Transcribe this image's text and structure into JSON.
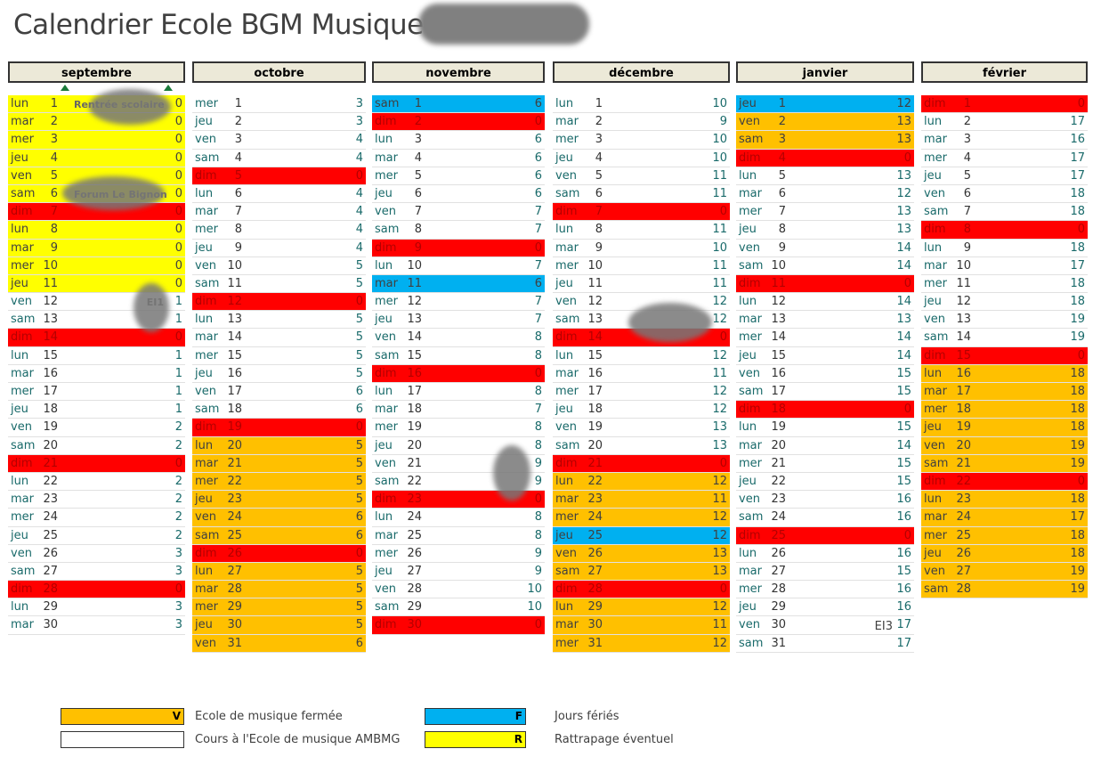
{
  "title": "Calendrier Ecole BGM Musique",
  "colors": {
    "vacances": "#ffc000",
    "ferie": "#00b0f0",
    "rattrapage": "#ffff00",
    "dimanche": "#ff0000",
    "cours": "#ffffff"
  },
  "months": [
    {
      "name": "septembre",
      "days": [
        [
          "lun",
          "1",
          "0",
          "r",
          "Rentrée scolaire"
        ],
        [
          "mar",
          "2",
          "0",
          "r"
        ],
        [
          "mer",
          "3",
          "0",
          "r"
        ],
        [
          "jeu",
          "4",
          "0",
          "r"
        ],
        [
          "ven",
          "5",
          "0",
          "r"
        ],
        [
          "sam",
          "6",
          "0",
          "r",
          "Forum Le Bignon"
        ],
        [
          "dim",
          "7",
          "0",
          "d"
        ],
        [
          "lun",
          "8",
          "0",
          "r"
        ],
        [
          "mar",
          "9",
          "0",
          "r"
        ],
        [
          "mer",
          "10",
          "0",
          "r"
        ],
        [
          "jeu",
          "11",
          "0",
          "r"
        ],
        [
          "ven",
          "12",
          "1",
          "c",
          "EI1"
        ],
        [
          "sam",
          "13",
          "1",
          "c"
        ],
        [
          "dim",
          "14",
          "0",
          "d"
        ],
        [
          "lun",
          "15",
          "1",
          "c"
        ],
        [
          "mar",
          "16",
          "1",
          "c"
        ],
        [
          "mer",
          "17",
          "1",
          "c"
        ],
        [
          "jeu",
          "18",
          "1",
          "c"
        ],
        [
          "ven",
          "19",
          "2",
          "c"
        ],
        [
          "sam",
          "20",
          "2",
          "c"
        ],
        [
          "dim",
          "21",
          "0",
          "d"
        ],
        [
          "lun",
          "22",
          "2",
          "c"
        ],
        [
          "mar",
          "23",
          "2",
          "c"
        ],
        [
          "mer",
          "24",
          "2",
          "c"
        ],
        [
          "jeu",
          "25",
          "2",
          "c"
        ],
        [
          "ven",
          "26",
          "3",
          "c"
        ],
        [
          "sam",
          "27",
          "3",
          "c"
        ],
        [
          "dim",
          "28",
          "0",
          "d"
        ],
        [
          "lun",
          "29",
          "3",
          "c"
        ],
        [
          "mar",
          "30",
          "3",
          "c"
        ]
      ]
    },
    {
      "name": "octobre",
      "days": [
        [
          "mer",
          "1",
          "3",
          "c"
        ],
        [
          "jeu",
          "2",
          "3",
          "c"
        ],
        [
          "ven",
          "3",
          "4",
          "c"
        ],
        [
          "sam",
          "4",
          "4",
          "c"
        ],
        [
          "dim",
          "5",
          "0",
          "d"
        ],
        [
          "lun",
          "6",
          "4",
          "c"
        ],
        [
          "mar",
          "7",
          "4",
          "c"
        ],
        [
          "mer",
          "8",
          "4",
          "c"
        ],
        [
          "jeu",
          "9",
          "4",
          "c"
        ],
        [
          "ven",
          "10",
          "5",
          "c"
        ],
        [
          "sam",
          "11",
          "5",
          "c"
        ],
        [
          "dim",
          "12",
          "0",
          "d"
        ],
        [
          "lun",
          "13",
          "5",
          "c"
        ],
        [
          "mar",
          "14",
          "5",
          "c"
        ],
        [
          "mer",
          "15",
          "5",
          "c"
        ],
        [
          "jeu",
          "16",
          "5",
          "c"
        ],
        [
          "ven",
          "17",
          "6",
          "c"
        ],
        [
          "sam",
          "18",
          "6",
          "c"
        ],
        [
          "dim",
          "19",
          "0",
          "d"
        ],
        [
          "lun",
          "20",
          "5",
          "v"
        ],
        [
          "mar",
          "21",
          "5",
          "v"
        ],
        [
          "mer",
          "22",
          "5",
          "v"
        ],
        [
          "jeu",
          "23",
          "5",
          "v"
        ],
        [
          "ven",
          "24",
          "6",
          "v"
        ],
        [
          "sam",
          "25",
          "6",
          "v"
        ],
        [
          "dim",
          "26",
          "0",
          "d"
        ],
        [
          "lun",
          "27",
          "5",
          "v"
        ],
        [
          "mar",
          "28",
          "5",
          "v"
        ],
        [
          "mer",
          "29",
          "5",
          "v"
        ],
        [
          "jeu",
          "30",
          "5",
          "v"
        ],
        [
          "ven",
          "31",
          "6",
          "v"
        ]
      ]
    },
    {
      "name": "novembre",
      "days": [
        [
          "sam",
          "1",
          "6",
          "f"
        ],
        [
          "dim",
          "2",
          "0",
          "d"
        ],
        [
          "lun",
          "3",
          "6",
          "c"
        ],
        [
          "mar",
          "4",
          "6",
          "c"
        ],
        [
          "mer",
          "5",
          "6",
          "c"
        ],
        [
          "jeu",
          "6",
          "6",
          "c"
        ],
        [
          "ven",
          "7",
          "7",
          "c"
        ],
        [
          "sam",
          "8",
          "7",
          "c"
        ],
        [
          "dim",
          "9",
          "0",
          "d"
        ],
        [
          "lun",
          "10",
          "7",
          "c"
        ],
        [
          "mar",
          "11",
          "6",
          "f"
        ],
        [
          "mer",
          "12",
          "7",
          "c"
        ],
        [
          "jeu",
          "13",
          "7",
          "c"
        ],
        [
          "ven",
          "14",
          "8",
          "c"
        ],
        [
          "sam",
          "15",
          "8",
          "c"
        ],
        [
          "dim",
          "16",
          "0",
          "d"
        ],
        [
          "lun",
          "17",
          "8",
          "c"
        ],
        [
          "mar",
          "18",
          "7",
          "c"
        ],
        [
          "mer",
          "19",
          "8",
          "c"
        ],
        [
          "jeu",
          "20",
          "8",
          "c"
        ],
        [
          "ven",
          "21",
          "9",
          "c"
        ],
        [
          "sam",
          "22",
          "9",
          "c"
        ],
        [
          "dim",
          "23",
          "0",
          "d"
        ],
        [
          "lun",
          "24",
          "8",
          "c"
        ],
        [
          "mar",
          "25",
          "8",
          "c"
        ],
        [
          "mer",
          "26",
          "9",
          "c"
        ],
        [
          "jeu",
          "27",
          "9",
          "c"
        ],
        [
          "ven",
          "28",
          "10",
          "c"
        ],
        [
          "sam",
          "29",
          "10",
          "c"
        ],
        [
          "dim",
          "30",
          "0",
          "d"
        ]
      ]
    },
    {
      "name": "décembre",
      "days": [
        [
          "lun",
          "1",
          "10",
          "c"
        ],
        [
          "mar",
          "2",
          "9",
          "c"
        ],
        [
          "mer",
          "3",
          "10",
          "c"
        ],
        [
          "jeu",
          "4",
          "10",
          "c"
        ],
        [
          "ven",
          "5",
          "11",
          "c"
        ],
        [
          "sam",
          "6",
          "11",
          "c"
        ],
        [
          "dim",
          "7",
          "0",
          "d"
        ],
        [
          "lun",
          "8",
          "11",
          "c"
        ],
        [
          "mar",
          "9",
          "10",
          "c"
        ],
        [
          "mer",
          "10",
          "11",
          "c"
        ],
        [
          "jeu",
          "11",
          "11",
          "c"
        ],
        [
          "ven",
          "12",
          "12",
          "c"
        ],
        [
          "sam",
          "13",
          "12",
          "c"
        ],
        [
          "dim",
          "14",
          "0",
          "d"
        ],
        [
          "lun",
          "15",
          "12",
          "c"
        ],
        [
          "mar",
          "16",
          "11",
          "c"
        ],
        [
          "mer",
          "17",
          "12",
          "c"
        ],
        [
          "jeu",
          "18",
          "12",
          "c"
        ],
        [
          "ven",
          "19",
          "13",
          "c"
        ],
        [
          "sam",
          "20",
          "13",
          "c"
        ],
        [
          "dim",
          "21",
          "0",
          "d"
        ],
        [
          "lun",
          "22",
          "12",
          "v"
        ],
        [
          "mar",
          "23",
          "11",
          "v"
        ],
        [
          "mer",
          "24",
          "12",
          "v"
        ],
        [
          "jeu",
          "25",
          "12",
          "f"
        ],
        [
          "ven",
          "26",
          "13",
          "v"
        ],
        [
          "sam",
          "27",
          "13",
          "v"
        ],
        [
          "dim",
          "28",
          "0",
          "d"
        ],
        [
          "lun",
          "29",
          "12",
          "v"
        ],
        [
          "mar",
          "30",
          "11",
          "v"
        ],
        [
          "mer",
          "31",
          "12",
          "v"
        ]
      ]
    },
    {
      "name": "janvier",
      "days": [
        [
          "jeu",
          "1",
          "12",
          "f"
        ],
        [
          "ven",
          "2",
          "13",
          "v"
        ],
        [
          "sam",
          "3",
          "13",
          "v"
        ],
        [
          "dim",
          "4",
          "0",
          "d"
        ],
        [
          "lun",
          "5",
          "13",
          "c"
        ],
        [
          "mar",
          "6",
          "12",
          "c"
        ],
        [
          "mer",
          "7",
          "13",
          "c"
        ],
        [
          "jeu",
          "8",
          "13",
          "c"
        ],
        [
          "ven",
          "9",
          "14",
          "c"
        ],
        [
          "sam",
          "10",
          "14",
          "c"
        ],
        [
          "dim",
          "11",
          "0",
          "d"
        ],
        [
          "lun",
          "12",
          "14",
          "c"
        ],
        [
          "mar",
          "13",
          "13",
          "c"
        ],
        [
          "mer",
          "14",
          "14",
          "c"
        ],
        [
          "jeu",
          "15",
          "14",
          "c"
        ],
        [
          "ven",
          "16",
          "15",
          "c"
        ],
        [
          "sam",
          "17",
          "15",
          "c"
        ],
        [
          "dim",
          "18",
          "0",
          "d"
        ],
        [
          "lun",
          "19",
          "15",
          "c"
        ],
        [
          "mar",
          "20",
          "14",
          "c"
        ],
        [
          "mer",
          "21",
          "15",
          "c"
        ],
        [
          "jeu",
          "22",
          "15",
          "c"
        ],
        [
          "ven",
          "23",
          "16",
          "c"
        ],
        [
          "sam",
          "24",
          "16",
          "c"
        ],
        [
          "dim",
          "25",
          "0",
          "d"
        ],
        [
          "lun",
          "26",
          "16",
          "c"
        ],
        [
          "mar",
          "27",
          "15",
          "c"
        ],
        [
          "mer",
          "28",
          "16",
          "c"
        ],
        [
          "jeu",
          "29",
          "16",
          "c"
        ],
        [
          "ven",
          "30",
          "17",
          "c",
          "EI3"
        ],
        [
          "sam",
          "31",
          "17",
          "c"
        ]
      ]
    },
    {
      "name": "février",
      "days": [
        [
          "dim",
          "1",
          "0",
          "d"
        ],
        [
          "lun",
          "2",
          "17",
          "c"
        ],
        [
          "mar",
          "3",
          "16",
          "c"
        ],
        [
          "mer",
          "4",
          "17",
          "c"
        ],
        [
          "jeu",
          "5",
          "17",
          "c"
        ],
        [
          "ven",
          "6",
          "18",
          "c"
        ],
        [
          "sam",
          "7",
          "18",
          "c"
        ],
        [
          "dim",
          "8",
          "0",
          "d"
        ],
        [
          "lun",
          "9",
          "18",
          "c"
        ],
        [
          "mar",
          "10",
          "17",
          "c"
        ],
        [
          "mer",
          "11",
          "18",
          "c"
        ],
        [
          "jeu",
          "12",
          "18",
          "c"
        ],
        [
          "ven",
          "13",
          "19",
          "c"
        ],
        [
          "sam",
          "14",
          "19",
          "c"
        ],
        [
          "dim",
          "15",
          "0",
          "d"
        ],
        [
          "lun",
          "16",
          "18",
          "v"
        ],
        [
          "mar",
          "17",
          "18",
          "v"
        ],
        [
          "mer",
          "18",
          "18",
          "v"
        ],
        [
          "jeu",
          "19",
          "18",
          "v"
        ],
        [
          "ven",
          "20",
          "19",
          "v"
        ],
        [
          "sam",
          "21",
          "19",
          "v"
        ],
        [
          "dim",
          "22",
          "0",
          "d"
        ],
        [
          "lun",
          "23",
          "18",
          "v"
        ],
        [
          "mar",
          "24",
          "17",
          "v"
        ],
        [
          "mer",
          "25",
          "18",
          "v"
        ],
        [
          "jeu",
          "26",
          "18",
          "v"
        ],
        [
          "ven",
          "27",
          "19",
          "v"
        ],
        [
          "sam",
          "28",
          "19",
          "v"
        ]
      ]
    }
  ],
  "legend": [
    {
      "code": "V",
      "label": "Ecole de musique fermée",
      "type": "v"
    },
    {
      "code": "",
      "label": "Cours à l'Ecole de musique AMBMG",
      "type": "c"
    },
    {
      "code": "F",
      "label": "Jours fériés",
      "type": "f"
    },
    {
      "code": "R",
      "label": "Rattrapage éventuel",
      "type": "r"
    }
  ]
}
